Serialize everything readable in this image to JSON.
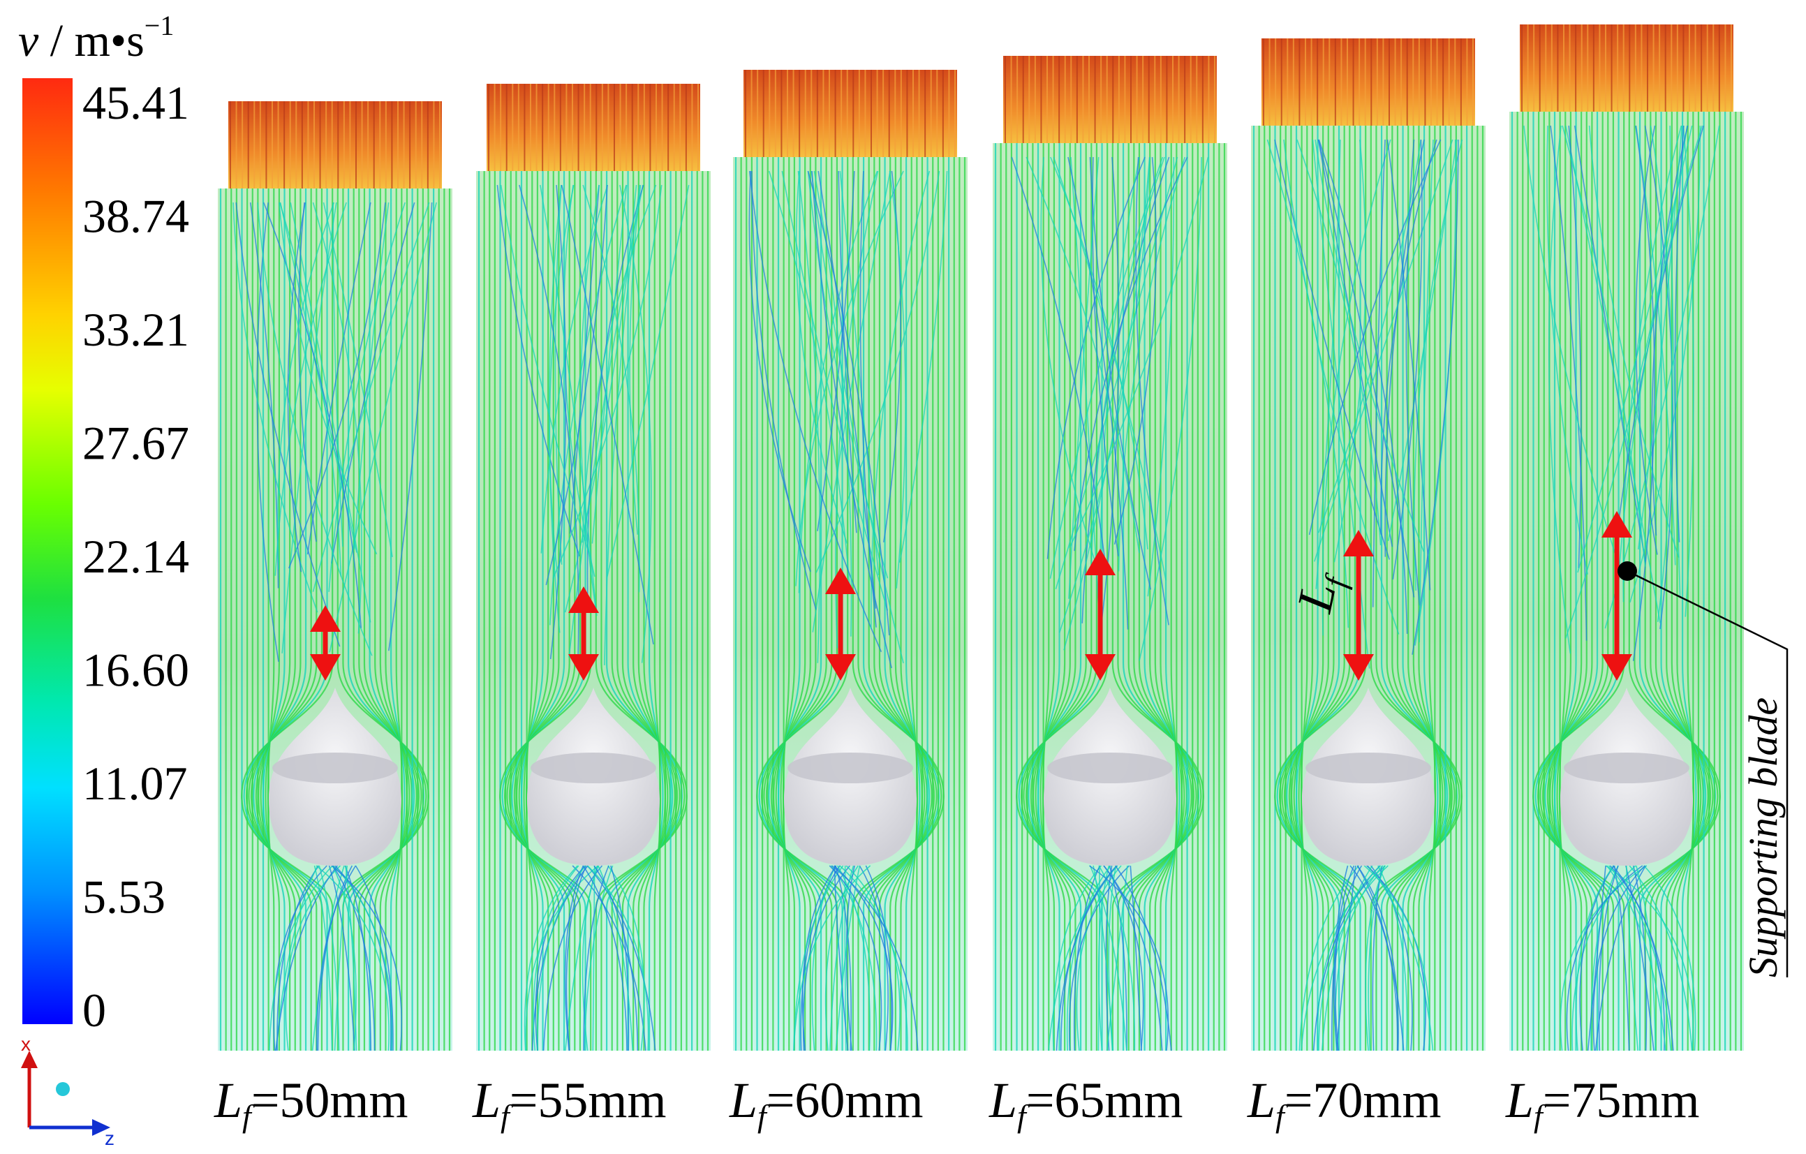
{
  "colorbar": {
    "symbol": "v",
    "unit": " / m•s",
    "unit_exp": "−1",
    "ticks": [
      "45.41",
      "38.74",
      "33.21",
      "27.67",
      "22.14",
      "16.60",
      "11.07",
      "5.53",
      "0"
    ],
    "colors": [
      "#ff2a10",
      "#ff7a00",
      "#ffd200",
      "#e6ff00",
      "#9cff00",
      "#28e000",
      "#00dd7a",
      "#00f0ff",
      "#00a6ff",
      "#0040ff",
      "#0000ff"
    ]
  },
  "cases": [
    {
      "symbol": "L",
      "sub": "f",
      "value": "=50mm",
      "lf_mm": 50
    },
    {
      "symbol": "L",
      "sub": "f",
      "value": "=55mm",
      "lf_mm": 55
    },
    {
      "symbol": "L",
      "sub": "f",
      "value": "=60mm",
      "lf_mm": 60
    },
    {
      "symbol": "L",
      "sub": "f",
      "value": "=65mm",
      "lf_mm": 65
    },
    {
      "symbol": "L",
      "sub": "f",
      "value": "=70mm",
      "lf_mm": 70
    },
    {
      "symbol": "L",
      "sub": "f",
      "value": "=75mm",
      "lf_mm": 75
    }
  ],
  "annotations": {
    "lf_symbol": "L",
    "lf_sub": "f",
    "supporting_blade": "Supporting blade"
  },
  "axes_triad": {
    "x_label": "x",
    "z_label": "z"
  },
  "colors": {
    "arrow": "#ee1111",
    "streamline_main": "#2ed84a",
    "streamline_low": "#16d6b8",
    "streamline_slow": "#1f7fe0",
    "hot": "#e8651c",
    "body": "#e4e4e8"
  }
}
